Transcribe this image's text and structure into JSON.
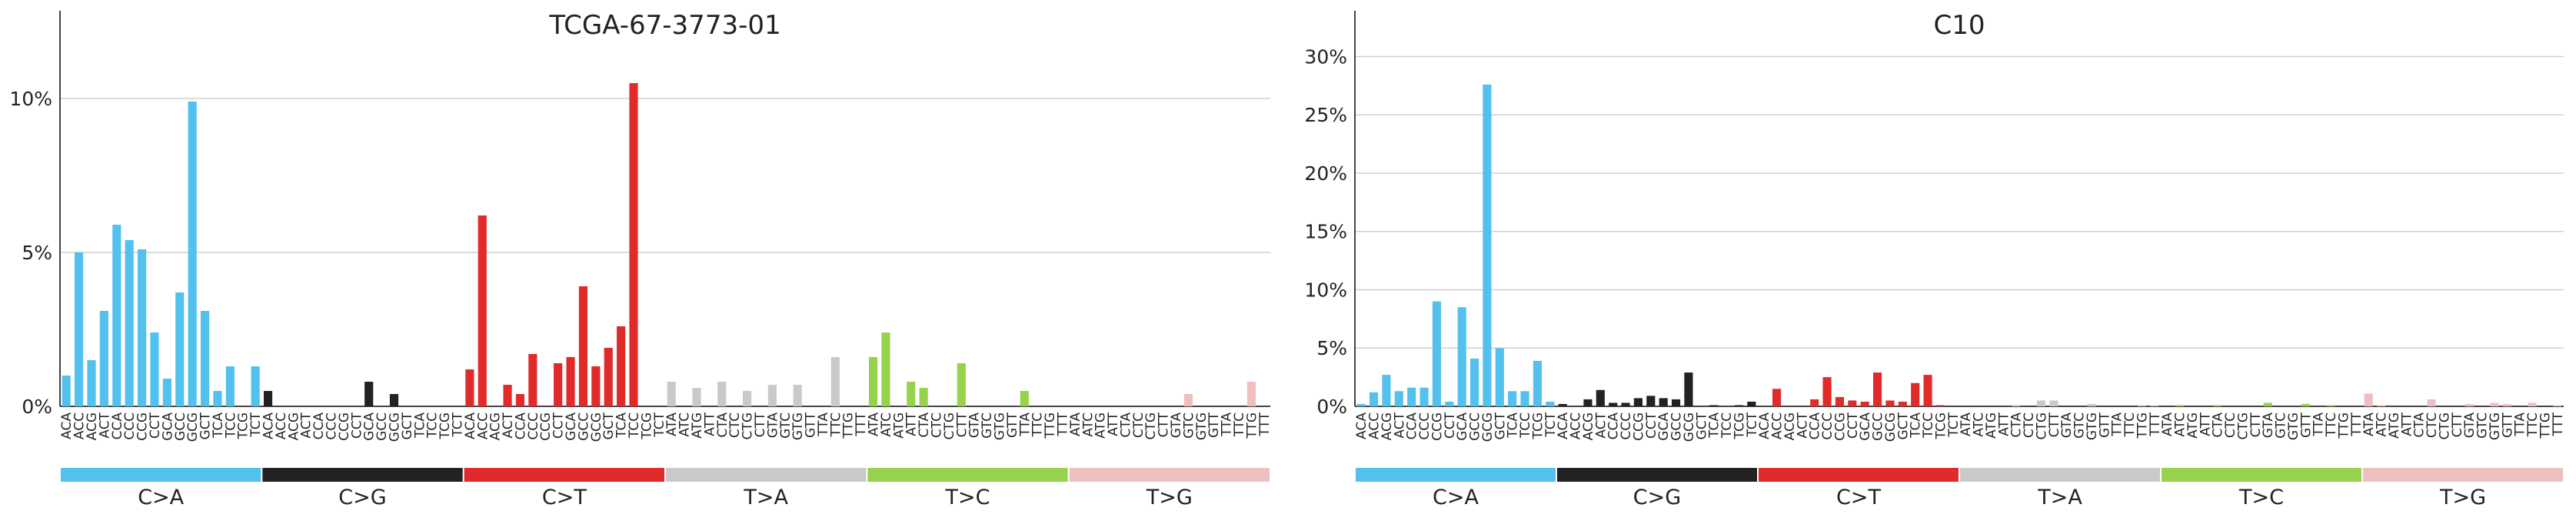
{
  "mutation_types": [
    "C>A",
    "C>G",
    "C>T",
    "T>A",
    "T>C",
    "T>G"
  ],
  "contexts": {
    "C": [
      "ACA",
      "ACC",
      "ACG",
      "ACT",
      "CCA",
      "CCC",
      "CCG",
      "CCT",
      "GCA",
      "GCC",
      "GCG",
      "GCT",
      "TCA",
      "TCC",
      "TCG",
      "TCT"
    ],
    "T": [
      "ATA",
      "ATC",
      "ATG",
      "ATT",
      "CTA",
      "CTC",
      "CTG",
      "CTT",
      "GTA",
      "GTC",
      "GTG",
      "GTT",
      "TTA",
      "TTC",
      "TTG",
      "TTT"
    ]
  },
  "colors": {
    "C>A": "#52c1ee",
    "C>G": "#222222",
    "C>T": "#e12a2a",
    "T>A": "#c9c9c9",
    "T>C": "#96d24c",
    "T>G": "#efbfc0"
  },
  "chart_data": [
    {
      "type": "bar",
      "title": "TCGA-67-3773-01",
      "ylim": [
        0,
        12.5
      ],
      "yticks": [
        0,
        5,
        10
      ],
      "ytick_labels": [
        "0%",
        "5%",
        "10%"
      ],
      "grid": true,
      "values": {
        "C>A": [
          1.0,
          5.0,
          1.5,
          3.1,
          5.9,
          5.4,
          5.1,
          2.4,
          0.9,
          3.7,
          9.9,
          3.1,
          0.5,
          1.3,
          0,
          1.3
        ],
        "C>G": [
          0.5,
          0,
          0,
          0,
          0,
          0,
          0,
          0,
          0.8,
          0,
          0.4,
          0,
          0,
          0,
          0,
          0
        ],
        "C>T": [
          1.2,
          6.2,
          0,
          0.7,
          0.4,
          1.7,
          0,
          1.4,
          1.6,
          3.9,
          1.3,
          1.9,
          2.6,
          10.5,
          0,
          0
        ],
        "T>A": [
          0.8,
          0,
          0.6,
          0,
          0.8,
          0,
          0.5,
          0,
          0.7,
          0,
          0.7,
          0,
          0,
          1.6,
          0,
          0
        ],
        "T>C": [
          1.6,
          2.4,
          0,
          0.8,
          0.6,
          0,
          0,
          1.4,
          0,
          0,
          0,
          0,
          0.5,
          0,
          0,
          0
        ],
        "T>G": [
          0,
          0,
          0,
          0,
          0,
          0,
          0,
          0,
          0,
          0.4,
          0,
          0,
          0,
          0,
          0.8,
          0
        ]
      }
    },
    {
      "type": "bar",
      "title": "C10",
      "ylim": [
        0,
        33
      ],
      "yticks": [
        0,
        5,
        10,
        15,
        20,
        25,
        30
      ],
      "ytick_labels": [
        "0%",
        "5%",
        "10%",
        "15%",
        "20%",
        "25%",
        "30%"
      ],
      "grid": true,
      "values": {
        "C>A": [
          0.2,
          1.2,
          2.7,
          1.3,
          1.6,
          1.6,
          9.0,
          0.4,
          8.5,
          4.1,
          27.6,
          5.0,
          1.3,
          1.3,
          3.9,
          0.4
        ],
        "C>G": [
          0.2,
          0,
          0.6,
          1.4,
          0.3,
          0.3,
          0.7,
          0.9,
          0.7,
          0.6,
          2.9,
          0,
          0.1,
          0,
          0.1,
          0.4
        ],
        "C>T": [
          0,
          1.5,
          0,
          0,
          0.6,
          2.5,
          0.8,
          0.5,
          0.4,
          2.9,
          0.5,
          0.4,
          2.0,
          2.7,
          0.1,
          0
        ],
        "T>A": [
          0,
          0,
          0,
          0,
          0.1,
          0,
          0.5,
          0.5,
          0,
          0,
          0.2,
          0,
          0,
          0,
          0.1,
          0.1
        ],
        "T>C": [
          0,
          0.1,
          0,
          0,
          0.1,
          0,
          0,
          0,
          0.3,
          0,
          0,
          0.2,
          0,
          0.1,
          0,
          0
        ],
        "T>G": [
          1.1,
          0.1,
          0,
          0,
          0,
          0.6,
          0,
          0,
          0.2,
          0,
          0.3,
          0.2,
          0,
          0.3,
          0,
          0.1
        ]
      }
    }
  ]
}
